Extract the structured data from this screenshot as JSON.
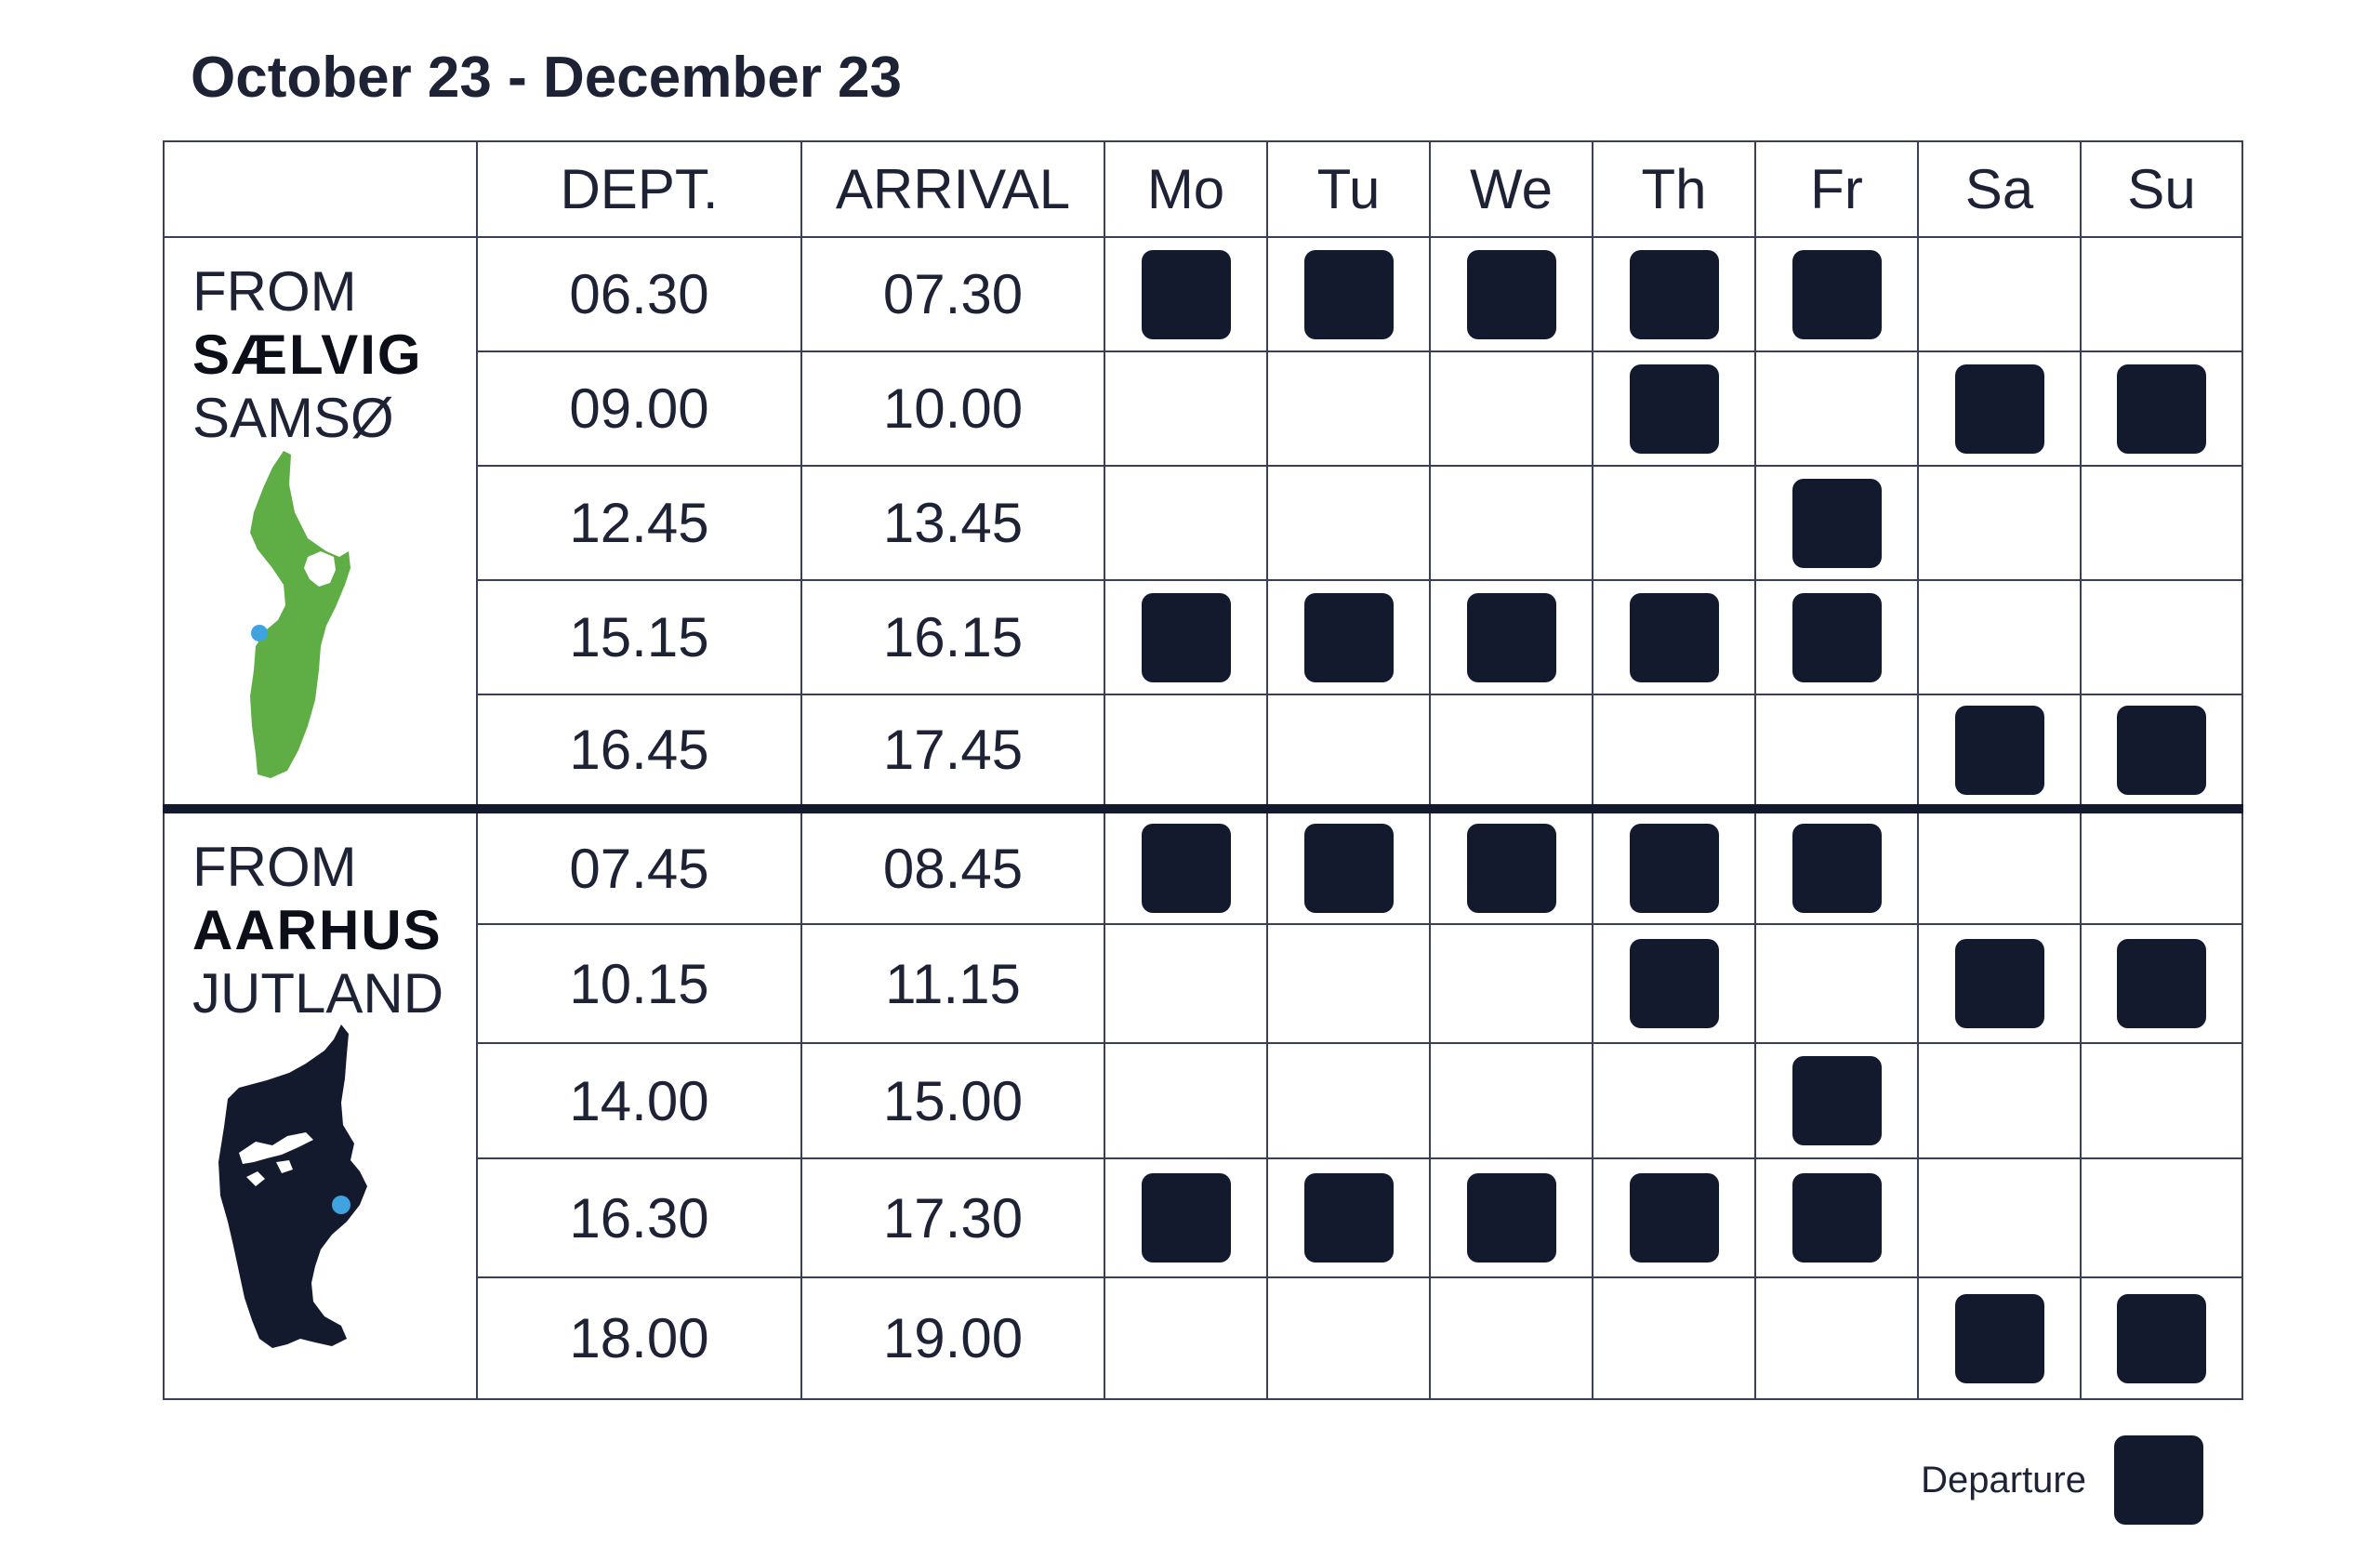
{
  "title": "October 23 - December 23",
  "columns": {
    "origin": "",
    "dept": "DEPT.",
    "arrival": "ARRIVAL",
    "days": [
      "Mo",
      "Tu",
      "We",
      "Th",
      "Fr",
      "Sa",
      "Su"
    ]
  },
  "routes": [
    {
      "from_label": "FROM",
      "place": "SÆLVIG",
      "region": "SAMSØ",
      "map_icon": "samso-island-map-icon",
      "map_color": "#5fae45",
      "departures": [
        {
          "dept": "06.30",
          "arrival": "07.30",
          "days": [
            true,
            true,
            true,
            true,
            true,
            false,
            false
          ]
        },
        {
          "dept": "09.00",
          "arrival": "10.00",
          "days": [
            false,
            false,
            false,
            true,
            false,
            true,
            true
          ]
        },
        {
          "dept": "12.45",
          "arrival": "13.45",
          "days": [
            false,
            false,
            false,
            false,
            true,
            false,
            false
          ]
        },
        {
          "dept": "15.15",
          "arrival": "16.15",
          "days": [
            true,
            true,
            true,
            true,
            true,
            false,
            false
          ]
        },
        {
          "dept": "16.45",
          "arrival": "17.45",
          "days": [
            false,
            false,
            false,
            false,
            false,
            true,
            true
          ]
        }
      ]
    },
    {
      "from_label": "FROM",
      "place": "AARHUS",
      "region": "JUTLAND",
      "map_icon": "jutland-map-icon",
      "map_color": "#131a2e",
      "departures": [
        {
          "dept": "07.45",
          "arrival": "08.45",
          "days": [
            true,
            true,
            true,
            true,
            true,
            false,
            false
          ]
        },
        {
          "dept": "10.15",
          "arrival": "11.15",
          "days": [
            false,
            false,
            false,
            true,
            false,
            true,
            true
          ]
        },
        {
          "dept": "14.00",
          "arrival": "15.00",
          "days": [
            false,
            false,
            false,
            false,
            true,
            false,
            false
          ]
        },
        {
          "dept": "16.30",
          "arrival": "17.30",
          "days": [
            true,
            true,
            true,
            true,
            true,
            false,
            false
          ]
        },
        {
          "dept": "18.00",
          "arrival": "19.00",
          "days": [
            false,
            false,
            false,
            false,
            false,
            true,
            true
          ]
        }
      ]
    }
  ],
  "legend": {
    "label": "Departure"
  },
  "colors": {
    "departure_box": "#131a2e",
    "port_dot": "#3fa3e0",
    "text": "#1e2235"
  }
}
